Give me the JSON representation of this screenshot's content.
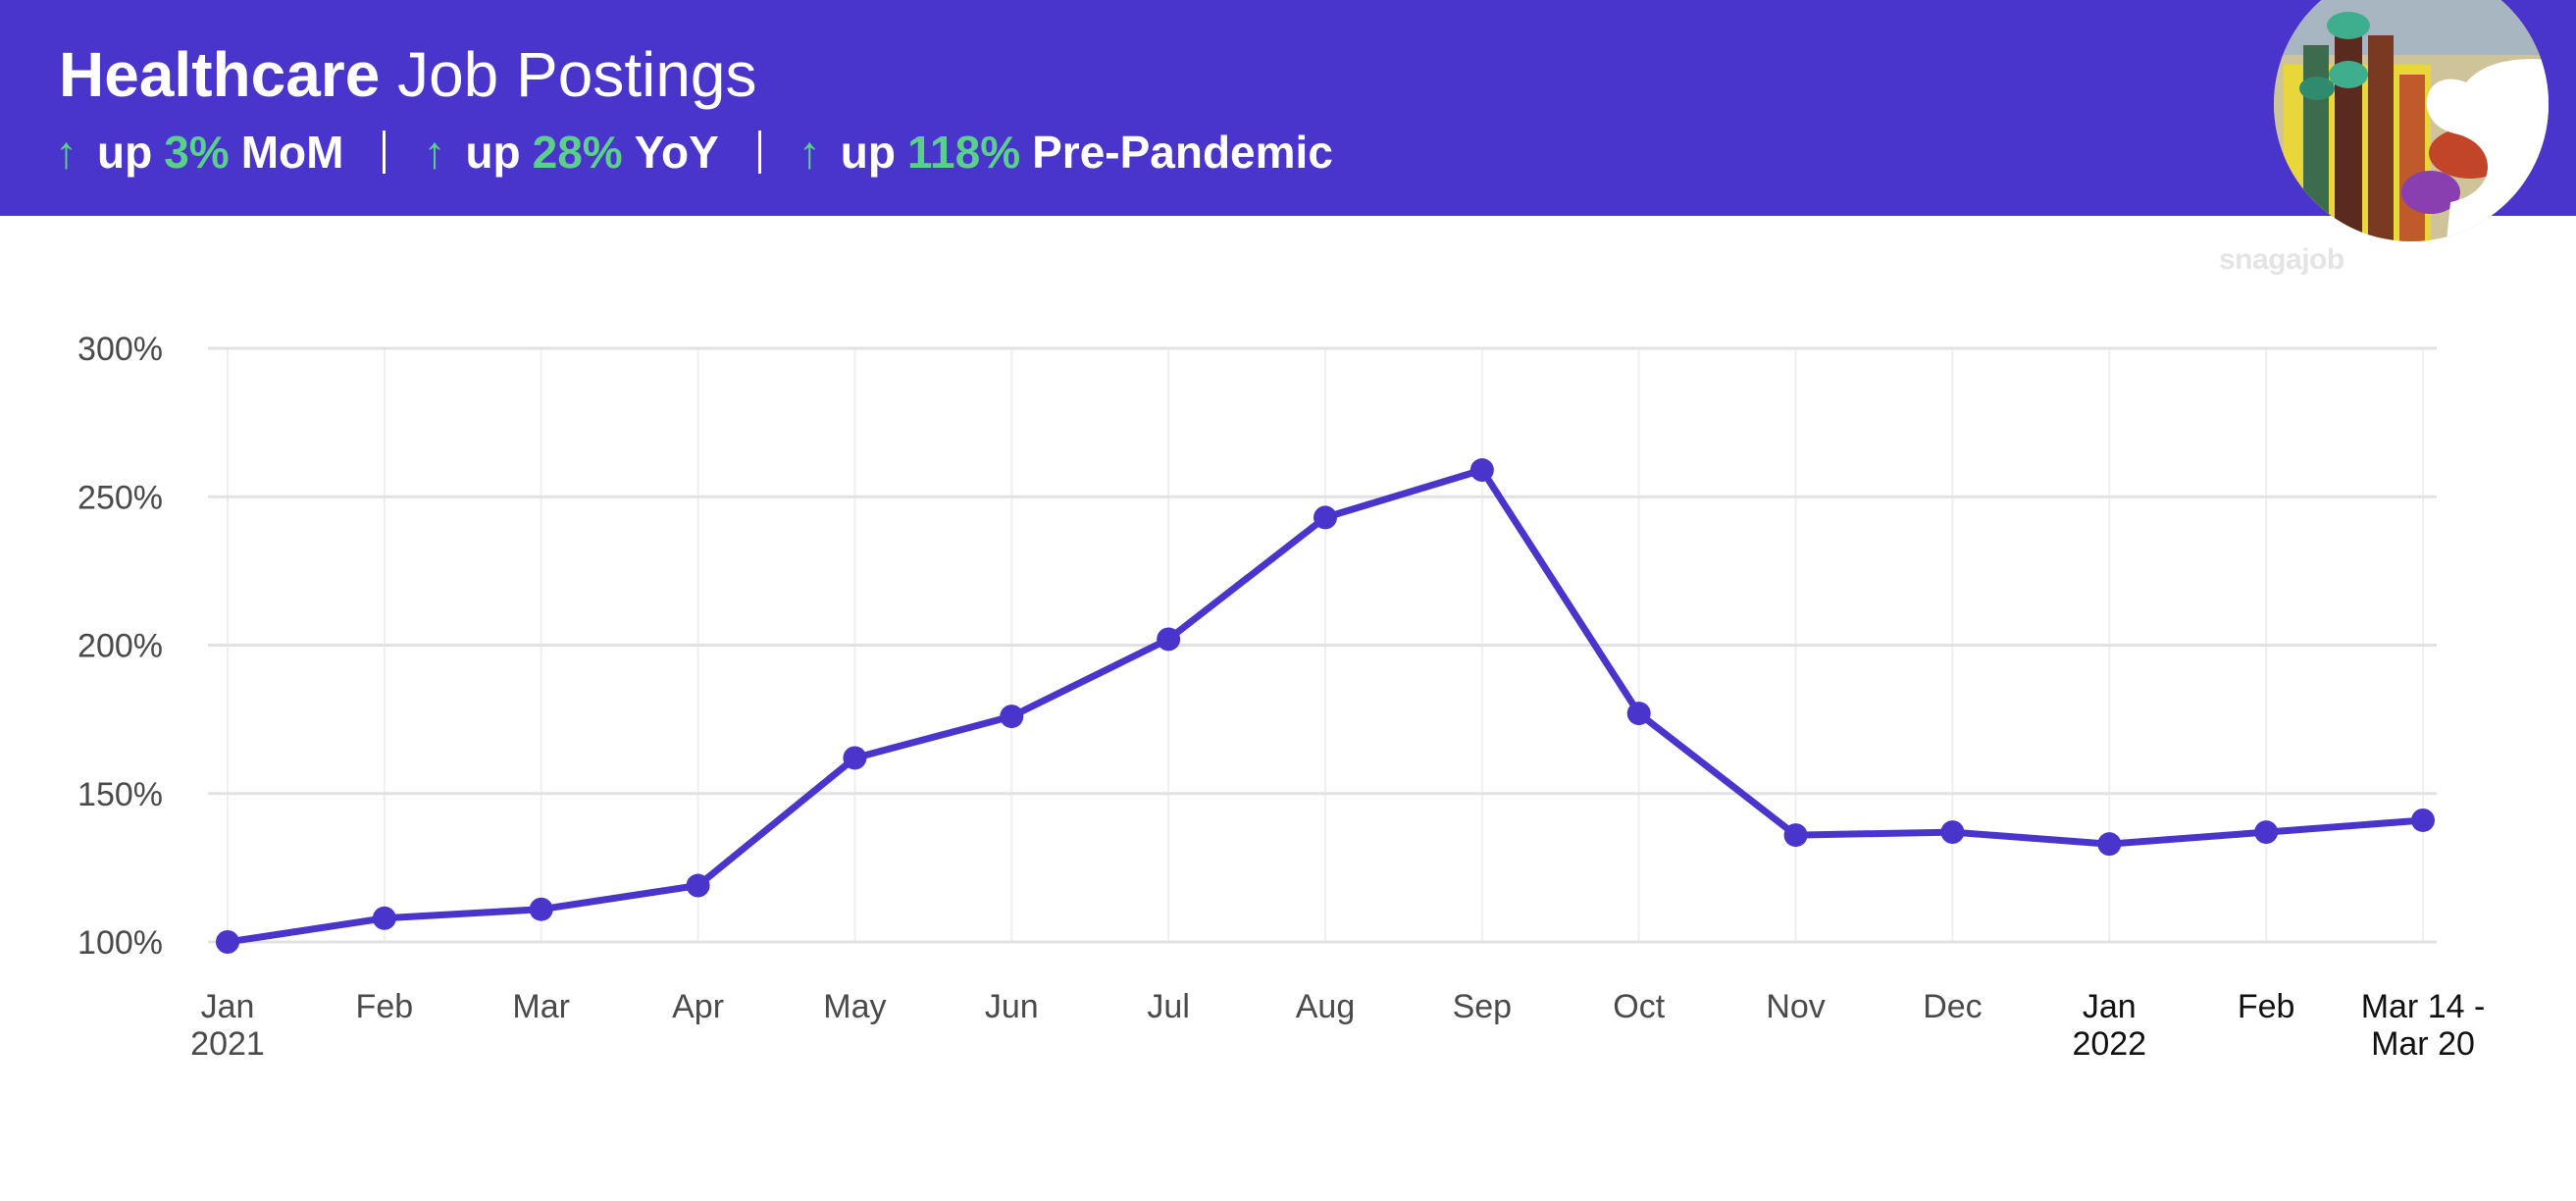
{
  "header": {
    "title_bold": "Healthcare",
    "title_rest": "Job Postings",
    "stats": [
      {
        "arrow": "↑",
        "prefix": "up",
        "value": "3%",
        "suffix": "MoM"
      },
      {
        "arrow": "↑",
        "prefix": "up",
        "value": "28%",
        "suffix": "YoY"
      },
      {
        "arrow": "↑",
        "prefix": "up",
        "value": "118%",
        "suffix": "Pre-Pandemic"
      }
    ]
  },
  "brand": {
    "watermark": "snagajob",
    "logo_letter": "s"
  },
  "colors": {
    "header_bg": "#4a35cc",
    "line": "#4a35cc",
    "accent_green": "#5ad08a"
  },
  "chart_data": {
    "type": "line",
    "title": "Healthcare Job Postings",
    "xlabel": "",
    "ylabel": "",
    "ylim": [
      100,
      300
    ],
    "yticks": [
      100,
      150,
      200,
      250,
      300
    ],
    "ytick_labels": [
      "100%",
      "150%",
      "200%",
      "250%",
      "300%"
    ],
    "grid": true,
    "categories": [
      [
        "Jan",
        "2021"
      ],
      [
        "Feb"
      ],
      [
        "Mar"
      ],
      [
        "Apr"
      ],
      [
        "May"
      ],
      [
        "Jun"
      ],
      [
        "Jul"
      ],
      [
        "Aug"
      ],
      [
        "Sep"
      ],
      [
        "Oct"
      ],
      [
        "Nov"
      ],
      [
        "Dec"
      ],
      [
        "Jan",
        "2022"
      ],
      [
        "Feb"
      ],
      [
        "Mar 14 -",
        "Mar 20"
      ]
    ],
    "series": [
      {
        "values": [
          100,
          108,
          111,
          119,
          162,
          176,
          202,
          243,
          259,
          177,
          136,
          137,
          133,
          137,
          141
        ]
      }
    ]
  }
}
